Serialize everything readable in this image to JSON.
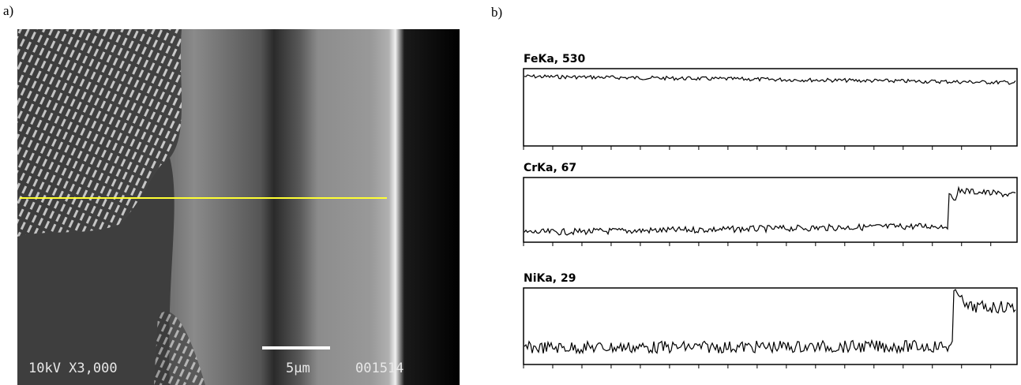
{
  "labels": {
    "a": "a)",
    "b": "b)"
  },
  "sem_image": {
    "settings": "10kV X3,000",
    "scale": "5μm",
    "image_id": "001514"
  },
  "line_scans": [
    {
      "label": "FeKa, 530"
    },
    {
      "label": "CrKa, 67"
    },
    {
      "label": "NiKa, 29"
    }
  ]
}
